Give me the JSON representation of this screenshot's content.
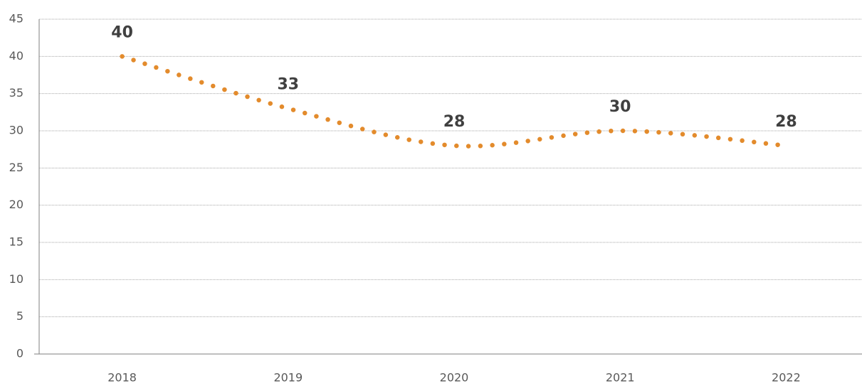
{
  "chart_data": {
    "type": "line",
    "categories": [
      "2018",
      "2019",
      "2020",
      "2021",
      "2022"
    ],
    "series": [
      {
        "color": "#e38b2c",
        "values": [
          40,
          33,
          28,
          30,
          28
        ]
      }
    ],
    "ylim": [
      0,
      45
    ],
    "yticks": [
      0,
      5,
      10,
      15,
      20,
      25,
      30,
      35,
      40,
      45
    ],
    "grid": true
  }
}
